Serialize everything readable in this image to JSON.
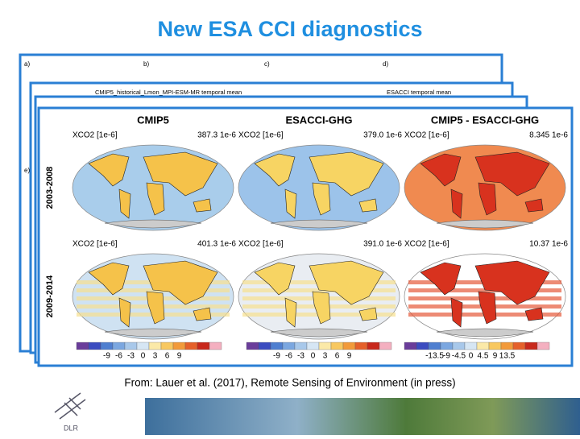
{
  "title": "New ESA CCI diagnostics",
  "back_panels": {
    "letters": [
      "a)",
      "b)",
      "c)",
      "d)",
      "e)"
    ],
    "captions": [
      "CMIP5_historical_Lmon_MPI-ESM-MR temporal mean",
      "ESACCI temporal mean"
    ]
  },
  "panel": {
    "columns": [
      "CMIP5",
      "ESACCI-GHG",
      "CMIP5 - ESACCI-GHG"
    ],
    "rows": [
      {
        "label": "2003-2008",
        "maps": [
          {
            "variable": "XCO2 [1e-6]",
            "mean": "387.3 1e-6"
          },
          {
            "variable": "XCO2 [1e-6]",
            "mean": "379.0 1e-6"
          },
          {
            "variable": "XCO2 [1e-6]",
            "mean": "8.345 1e-6"
          }
        ]
      },
      {
        "label": "2009-2014",
        "maps": [
          {
            "variable": "XCO2 [1e-6]",
            "mean": "401.3 1e-6"
          },
          {
            "variable": "XCO2 [1e-6]",
            "mean": "391.0 1e-6"
          },
          {
            "variable": "XCO2 [1e-6]",
            "mean": "10.37 1e-6"
          }
        ]
      }
    ],
    "colorbars": [
      [
        "-9",
        "-6",
        "-3",
        "0",
        "3",
        "6",
        "9"
      ],
      [
        "-9",
        "-6",
        "-3",
        "0",
        "3",
        "6",
        "9"
      ],
      [
        "-13.5",
        "-9",
        "-4.5",
        "0",
        "4.5",
        "9",
        "13.5"
      ]
    ]
  },
  "caption": "From: Lauer et al. (2017), Remote Sensing of Environment (in press)",
  "logo": "DLR"
}
